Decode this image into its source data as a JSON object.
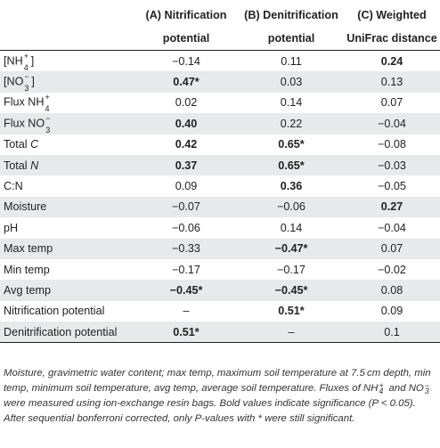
{
  "header": {
    "col_a_line1": "(A) Nitrification",
    "col_a_line2": "potential",
    "col_b_line1": "(B) Denitrification",
    "col_b_line2": "potential",
    "col_c_line1": "(C) Weighted",
    "col_c_line2": "UniFrac distance"
  },
  "rows": [
    {
      "label": {
        "pre": "[NH",
        "sub": "4",
        "sup": "+",
        "post": "]"
      },
      "a": "−0.14",
      "a_bold": false,
      "b": "0.11",
      "b_bold": false,
      "c": "0.24",
      "c_bold": true
    },
    {
      "label": {
        "pre": "[NO",
        "sub": "3",
        "sup": "−",
        "post": "]"
      },
      "a": "0.47*",
      "a_bold": true,
      "b": "0.03",
      "b_bold": false,
      "c": "0.13",
      "c_bold": false
    },
    {
      "label": {
        "pre": "Flux NH",
        "sub": "4",
        "sup": "+",
        "post": ""
      },
      "a": "0.02",
      "a_bold": false,
      "b": "0.14",
      "b_bold": false,
      "c": "0.07",
      "c_bold": false
    },
    {
      "label": {
        "pre": "Flux NO",
        "sub": "3",
        "sup": "−",
        "post": ""
      },
      "a": "0.40",
      "a_bold": true,
      "b": "0.22",
      "b_bold": false,
      "c": "−0.04",
      "c_bold": false
    },
    {
      "label": {
        "pre": "Total ",
        "ital": "C"
      },
      "a": "0.42",
      "a_bold": true,
      "b": "0.65*",
      "b_bold": true,
      "c": "−0.08",
      "c_bold": false
    },
    {
      "label": {
        "pre": "Total ",
        "ital": "N"
      },
      "a": "0.37",
      "a_bold": true,
      "b": "0.65*",
      "b_bold": true,
      "c": "−0.03",
      "c_bold": false
    },
    {
      "label": {
        "pre": "C:N"
      },
      "a": "0.09",
      "a_bold": false,
      "b": "0.36",
      "b_bold": true,
      "c": "−0.05",
      "c_bold": false
    },
    {
      "label": {
        "pre": "Moisture"
      },
      "a": "−0.07",
      "a_bold": false,
      "b": "−0.06",
      "b_bold": false,
      "c": "0.27",
      "c_bold": true
    },
    {
      "label": {
        "pre": "pH"
      },
      "a": "−0.06",
      "a_bold": false,
      "b": "0.14",
      "b_bold": false,
      "c": "−0.04",
      "c_bold": false
    },
    {
      "label": {
        "pre": "Max temp"
      },
      "a": "−0.33",
      "a_bold": false,
      "b": "−0.47*",
      "b_bold": true,
      "c": "0.07",
      "c_bold": false
    },
    {
      "label": {
        "pre": "Min temp"
      },
      "a": "−0.17",
      "a_bold": false,
      "b": "−0.17",
      "b_bold": false,
      "c": "−0.02",
      "c_bold": false
    },
    {
      "label": {
        "pre": "Avg temp"
      },
      "a": "−0.45*",
      "a_bold": true,
      "b": "−0.45*",
      "b_bold": true,
      "c": "0.08",
      "c_bold": false
    },
    {
      "label": {
        "pre": "Nitrification potential"
      },
      "a": "–",
      "a_bold": false,
      "b": "0.51*",
      "b_bold": true,
      "c": "0.09",
      "c_bold": false
    },
    {
      "label": {
        "pre": "Denitrification potential"
      },
      "a": "0.51*",
      "a_bold": true,
      "b": "–",
      "b_bold": false,
      "c": "0.1",
      "c_bold": false
    }
  ],
  "footnote": {
    "p1": "Moisture, gravimetric water content; max temp, maximum soil temperature at 7.5 cm depth, min temp, minimum soil temperature, avg temp, average soil temperature. Fluxes of ",
    "nh_pre": "NH",
    "nh_sub": "4",
    "nh_sup": "+",
    "and": " and ",
    "no_pre": "NO",
    "no_sub": "3",
    "no_sup": "−",
    "p2": " were measured using ion-exchange resin bags. Bold values indicate significance (P < 0.05). After sequential bonferroni corrected, only P-values with * were still significant."
  }
}
